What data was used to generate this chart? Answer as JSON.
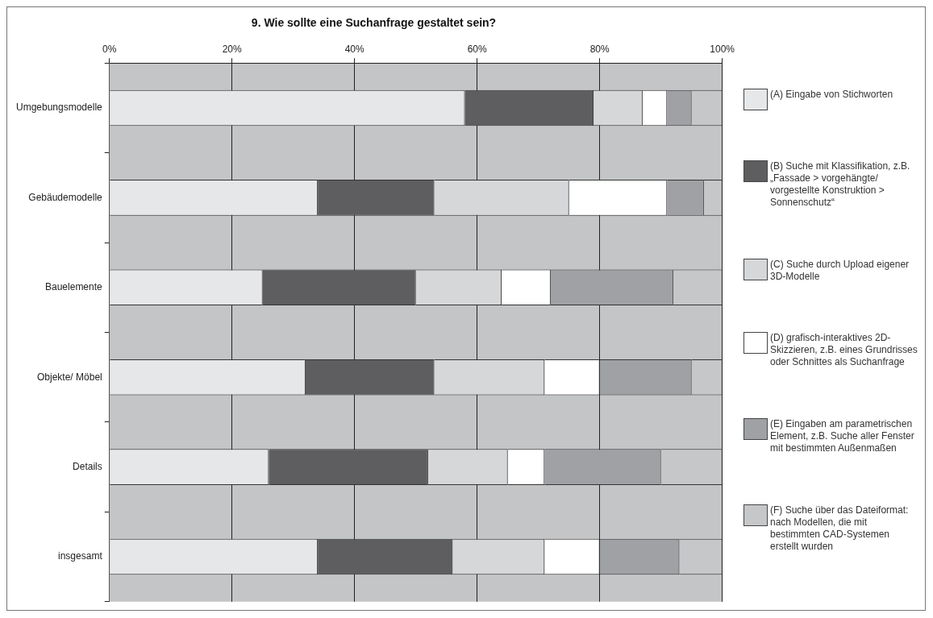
{
  "chart_data": {
    "type": "bar",
    "orientation": "horizontal",
    "stacked": true,
    "title": "9. Wie sollte eine Suchanfrage gestaltet sein?",
    "categories": [
      "Umgebungsmodelle",
      "Gebäudemodelle",
      "Bauelemente",
      "Objekte/ Möbel",
      "Details",
      "insgesamt"
    ],
    "series": [
      {
        "name": "(A) Eingabe von Stichworten",
        "color": "#e6e7e9",
        "values": [
          58,
          34,
          25,
          32,
          26,
          34
        ]
      },
      {
        "name": "(B) Suche mit Klassifikation, z.B. „Fassade > vorgehängte/ vorgestellte Konstruktion > Sonnenschutz“",
        "color": "#5e5e60",
        "values": [
          21,
          19,
          25,
          21,
          26,
          22
        ]
      },
      {
        "name": "(C) Suche durch Upload eigener 3D-Modelle",
        "color": "#d6d7d9",
        "values": [
          8,
          22,
          14,
          18,
          13,
          15
        ]
      },
      {
        "name": "(D) grafisch-interaktives 2D-Skizzieren, z.B. eines Grundrisses oder Schnittes als Suchanfrage",
        "color": "#ffffff",
        "values": [
          4,
          16,
          8,
          9,
          6,
          9
        ]
      },
      {
        "name": "(E) Eingaben am parametrischen Element, z.B. Suche aller Fenster mit bestimmten Außenmaßen",
        "color": "#a0a1a4",
        "values": [
          4,
          6,
          20,
          15,
          19,
          13
        ]
      },
      {
        "name": "(F) Suche über das Dateiformat: nach Modellen, die mit bestimmten CAD-Systemen erstellt wurden",
        "color": "#c6c7c9",
        "values": [
          5,
          3,
          8,
          5,
          10,
          7
        ]
      }
    ],
    "xlim": [
      0,
      100
    ],
    "xticks": [
      {
        "value": 0,
        "label": "0%"
      },
      {
        "value": 20,
        "label": "20%"
      },
      {
        "value": 40,
        "label": "40%"
      },
      {
        "value": 60,
        "label": "60%"
      },
      {
        "value": 80,
        "label": "80%"
      },
      {
        "value": 100,
        "label": "100%"
      }
    ],
    "grid": "x",
    "legend": "right"
  }
}
